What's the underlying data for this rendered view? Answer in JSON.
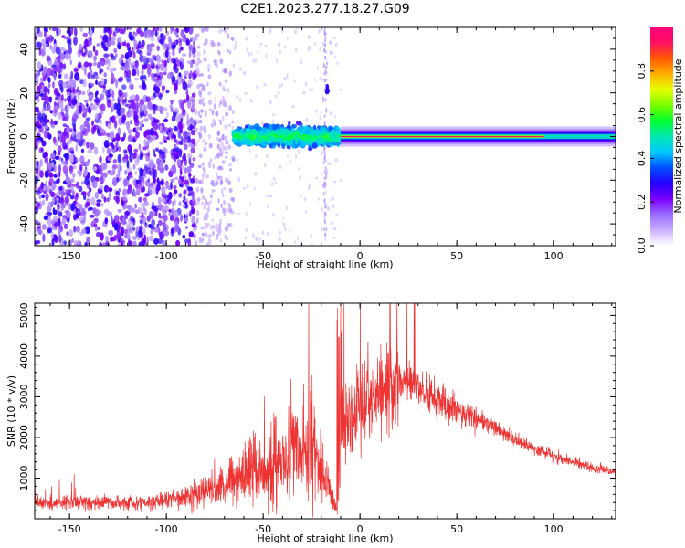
{
  "title": "C2E1.2023.277.18.27.G09",
  "chart_data": [
    {
      "type": "heatmap",
      "xlabel": "Height of straight line (km)",
      "ylabel": "Frequency (Hz)",
      "xlim": [
        -168,
        132
      ],
      "ylim": [
        -50,
        50
      ],
      "x_ticks": [
        -150,
        -100,
        -50,
        0,
        50,
        100
      ],
      "y_ticks": [
        -40,
        -20,
        0,
        20,
        40
      ],
      "colorbar": {
        "label": "Normalized spectral amplitude",
        "range": [
          0,
          1
        ],
        "ticks": [
          "0.0",
          "0.2",
          "0.4",
          "0.6",
          "0.8"
        ],
        "colors": [
          "#ffffff",
          "#c9b0ff",
          "#9a6bff",
          "#7a00ff",
          "#2400ff",
          "#0050ff",
          "#00c8ff",
          "#00e8b0",
          "#00ff30",
          "#78ff00",
          "#e6ff00",
          "#ffb000",
          "#ff5a00",
          "#ff1060",
          "#ff007a"
        ]
      },
      "features": {
        "line_center_hz": 0,
        "scattered_region_km": [
          -168,
          -85
        ],
        "sparse_region_km": [
          -85,
          -65
        ],
        "turbulent_region_km": [
          -65,
          -10
        ],
        "stable_region_km": [
          -10,
          132
        ],
        "stable_linewidth_hz": 4
      }
    },
    {
      "type": "line",
      "xlabel": "Height of straight line (km)",
      "ylabel": "SNR (10 * v/v)",
      "xlim": [
        -168,
        132
      ],
      "ylim": [
        0,
        5300
      ],
      "x_ticks": [
        -150,
        -100,
        -50,
        0,
        50,
        100
      ],
      "y_ticks": [
        1000,
        2000,
        3000,
        4000,
        5000
      ],
      "color": "#ee3333",
      "series": [
        {
          "x": [
            -168,
            -160,
            -150,
            -140,
            -130,
            -120,
            -110,
            -100,
            -95,
            -90,
            -85,
            -80,
            -75,
            -70,
            -65,
            -60,
            -55,
            -50,
            -45,
            -40,
            -35,
            -30,
            -25,
            -20,
            -15,
            -12,
            -10,
            -5,
            0,
            5,
            10,
            15,
            20,
            25,
            30,
            35,
            40,
            50,
            60,
            70,
            80,
            90,
            100,
            110,
            120,
            132
          ],
          "y": [
            400,
            380,
            420,
            400,
            420,
            380,
            420,
            470,
            520,
            560,
            620,
            680,
            760,
            820,
            950,
            1050,
            1350,
            1100,
            1450,
            1250,
            1700,
            1550,
            2100,
            1300,
            500,
            200,
            2300,
            2400,
            2700,
            2850,
            3000,
            3250,
            3350,
            3400,
            3200,
            3050,
            2900,
            2700,
            2450,
            2200,
            1950,
            1750,
            1550,
            1400,
            1250,
            1150
          ]
        }
      ]
    }
  ]
}
